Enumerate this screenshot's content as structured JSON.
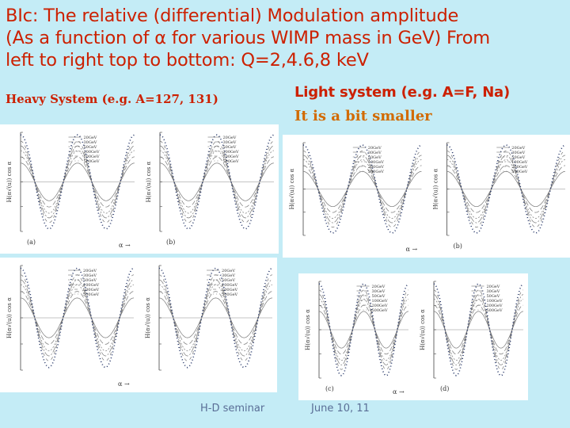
{
  "title": {
    "line1": "BIc: The relative (differential) Modulation amplitude",
    "line2": "(As a function of α for various WIMP mass in GeV) From",
    "line3": "left to right top to bottom: Q=2,4.6,8 keV"
  },
  "heavy_label": "Heavy System (e.g.  A=127, 131)",
  "light_label": "Light  system (e.g. A=F, Na)",
  "light_note": "It is a bit smaller",
  "footer": {
    "left": "H-D seminar",
    "right": "June 10, 11"
  },
  "colors": {
    "background": "#c4ecf6",
    "title": "#cc2000",
    "note": "#d26a00",
    "footer": "#5a6e96"
  },
  "figures": [
    {
      "group": "heavy",
      "row": "top",
      "plots": [
        {
          "panel_label": "(a)",
          "ylabel": "H(α√(u)) cos α",
          "xlabel": "α →"
        },
        {
          "panel_label": "(b)",
          "ylabel": "H(α√(u)) cos α",
          "xlabel": ""
        }
      ]
    },
    {
      "group": "heavy",
      "row": "bottom",
      "plots": [
        {
          "panel_label": "",
          "ylabel": "H(α√(u)) cos α",
          "xlabel": "α →"
        },
        {
          "panel_label": "",
          "ylabel": "H(α√(u)) cos α",
          "xlabel": ""
        }
      ]
    },
    {
      "group": "light",
      "row": "top",
      "plots": [
        {
          "panel_label": "",
          "ylabel": "H(α√(u)) cos α",
          "xlabel": "α →"
        },
        {
          "panel_label": "(b)",
          "ylabel": "H(α√(u)) cos α",
          "xlabel": ""
        }
      ]
    },
    {
      "group": "light",
      "row": "bottom",
      "plots": [
        {
          "panel_label": "(c)",
          "ylabel": "H(α√(u)) cos α",
          "xlabel": "α →"
        },
        {
          "panel_label": "(d)",
          "ylabel": "H(α√(u)) cos α",
          "xlabel": ""
        }
      ]
    }
  ],
  "legend_entries": [
    "20GeV",
    "30GeV",
    "50GeV",
    "100GeV",
    "200GeV",
    "500GeV"
  ],
  "curve_amplitudes": [
    0.12,
    0.16,
    0.2,
    0.23,
    0.26,
    0.3
  ]
}
